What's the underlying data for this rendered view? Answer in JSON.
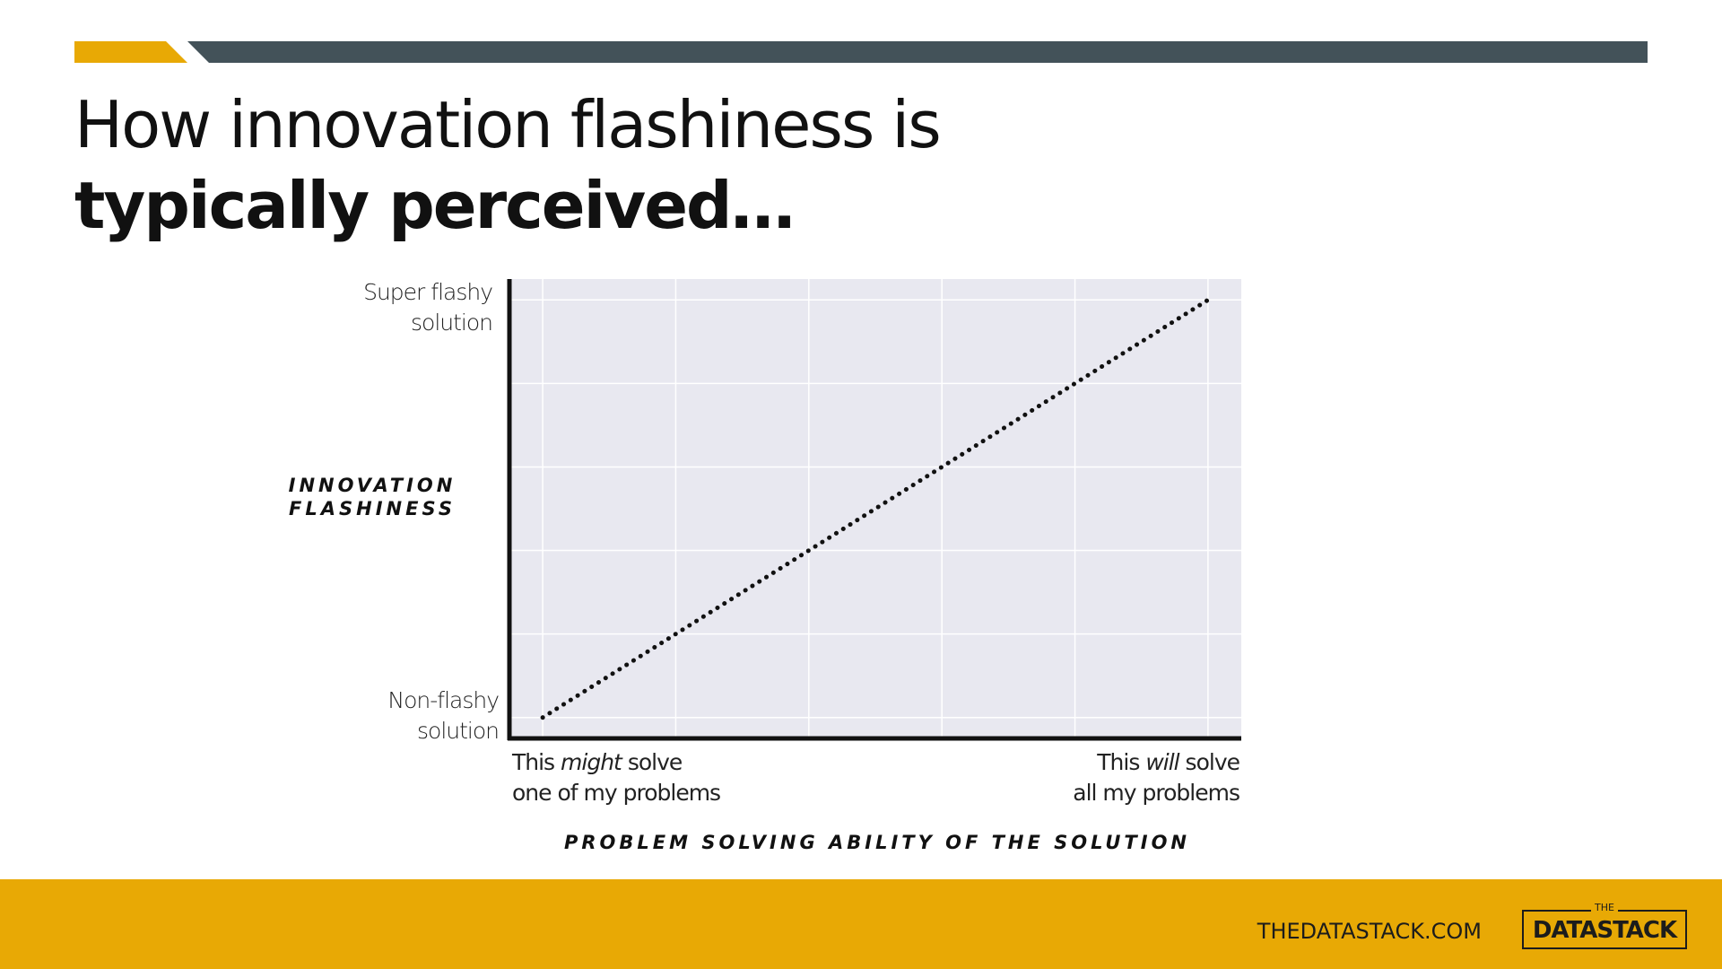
{
  "slide": {
    "title_line1": "How innovation flashiness is",
    "title_line2": "typically perceived…"
  },
  "colors": {
    "accent_yellow": "#e8a905",
    "bar_dark": "#435259",
    "plot_background": "#e8e8f0",
    "grid": "#ffffff",
    "axis": "#111111",
    "series": "#111111"
  },
  "chart_data": {
    "type": "line",
    "title": "",
    "xlabel": "PROBLEM SOLVING ABILITY OF THE SOLUTION",
    "ylabel": "INNOVATION FLASHINESS",
    "x_tick_labels": {
      "left": {
        "before": "This ",
        "emphasis": "might",
        "after": " solve",
        "line2": "one of my problems"
      },
      "right": {
        "before": "This ",
        "emphasis": "will",
        "after": " solve",
        "line2": "all my problems"
      }
    },
    "y_tick_labels": {
      "top": {
        "line1": "Super flashy",
        "line2": "solution"
      },
      "bottom": {
        "line1": "Non-flashy",
        "line2": "solution"
      }
    },
    "x": [
      0,
      100
    ],
    "y": [
      0,
      100
    ],
    "xlim": [
      -5,
      105
    ],
    "ylim": [
      -5,
      105
    ],
    "marker": "dotted line",
    "grid": true,
    "series": [
      {
        "x": [
          0,
          100
        ],
        "y": [
          0,
          100
        ]
      }
    ]
  },
  "footer": {
    "url": "THEDATASTACK.COM",
    "logo_small": "THE",
    "logo_big": "DATASTACK"
  }
}
